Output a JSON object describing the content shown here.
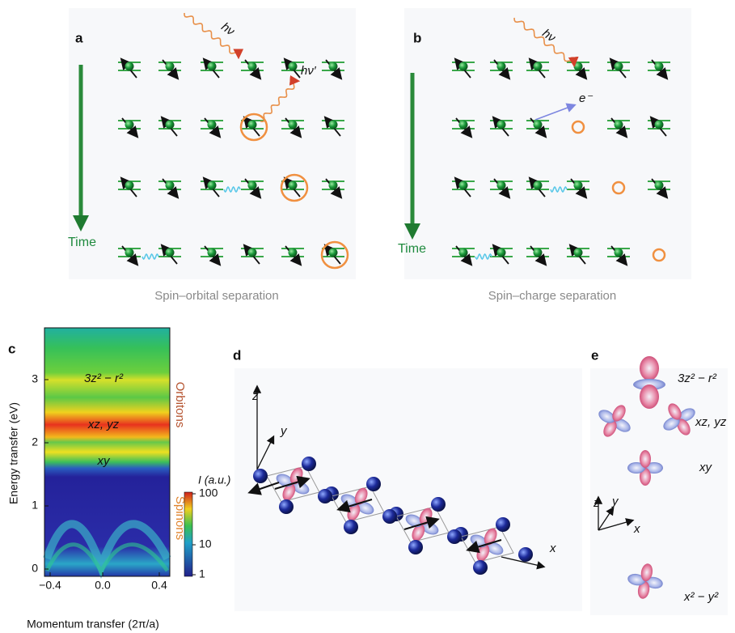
{
  "panels": [
    {
      "label": "a",
      "photon_in": "hν",
      "photon_out": "hν′",
      "time": "Time",
      "caption": "Spin–orbital separation"
    },
    {
      "label": "b",
      "photon_in": "hν",
      "electron": "e⁻",
      "time": "Time",
      "caption": "Spin–charge separation"
    },
    {
      "label": "c",
      "y_axis_label": "Energy transfer (eV)",
      "x_axis_label": "Momentum transfer (2π/a)",
      "yticks": [
        "0",
        "1",
        "2",
        "3"
      ],
      "xticks": [
        "−0.4",
        "0.0",
        "0.4"
      ],
      "colorbar_label": "I (a.u.)",
      "colorbar_ticks": [
        "100",
        "10",
        "1"
      ],
      "band_labels": [
        "3z² − r²",
        "xz, yz",
        "xy"
      ],
      "side_labels": [
        "Orbitons",
        "Spinons"
      ]
    },
    {
      "label": "d",
      "axes": [
        "z",
        "y",
        "x"
      ]
    },
    {
      "label": "e",
      "orbitals": [
        "3z² − r²",
        "xz, yz",
        "xy",
        "x² − y²"
      ],
      "axes": [
        "z",
        "y",
        "x"
      ]
    }
  ]
}
